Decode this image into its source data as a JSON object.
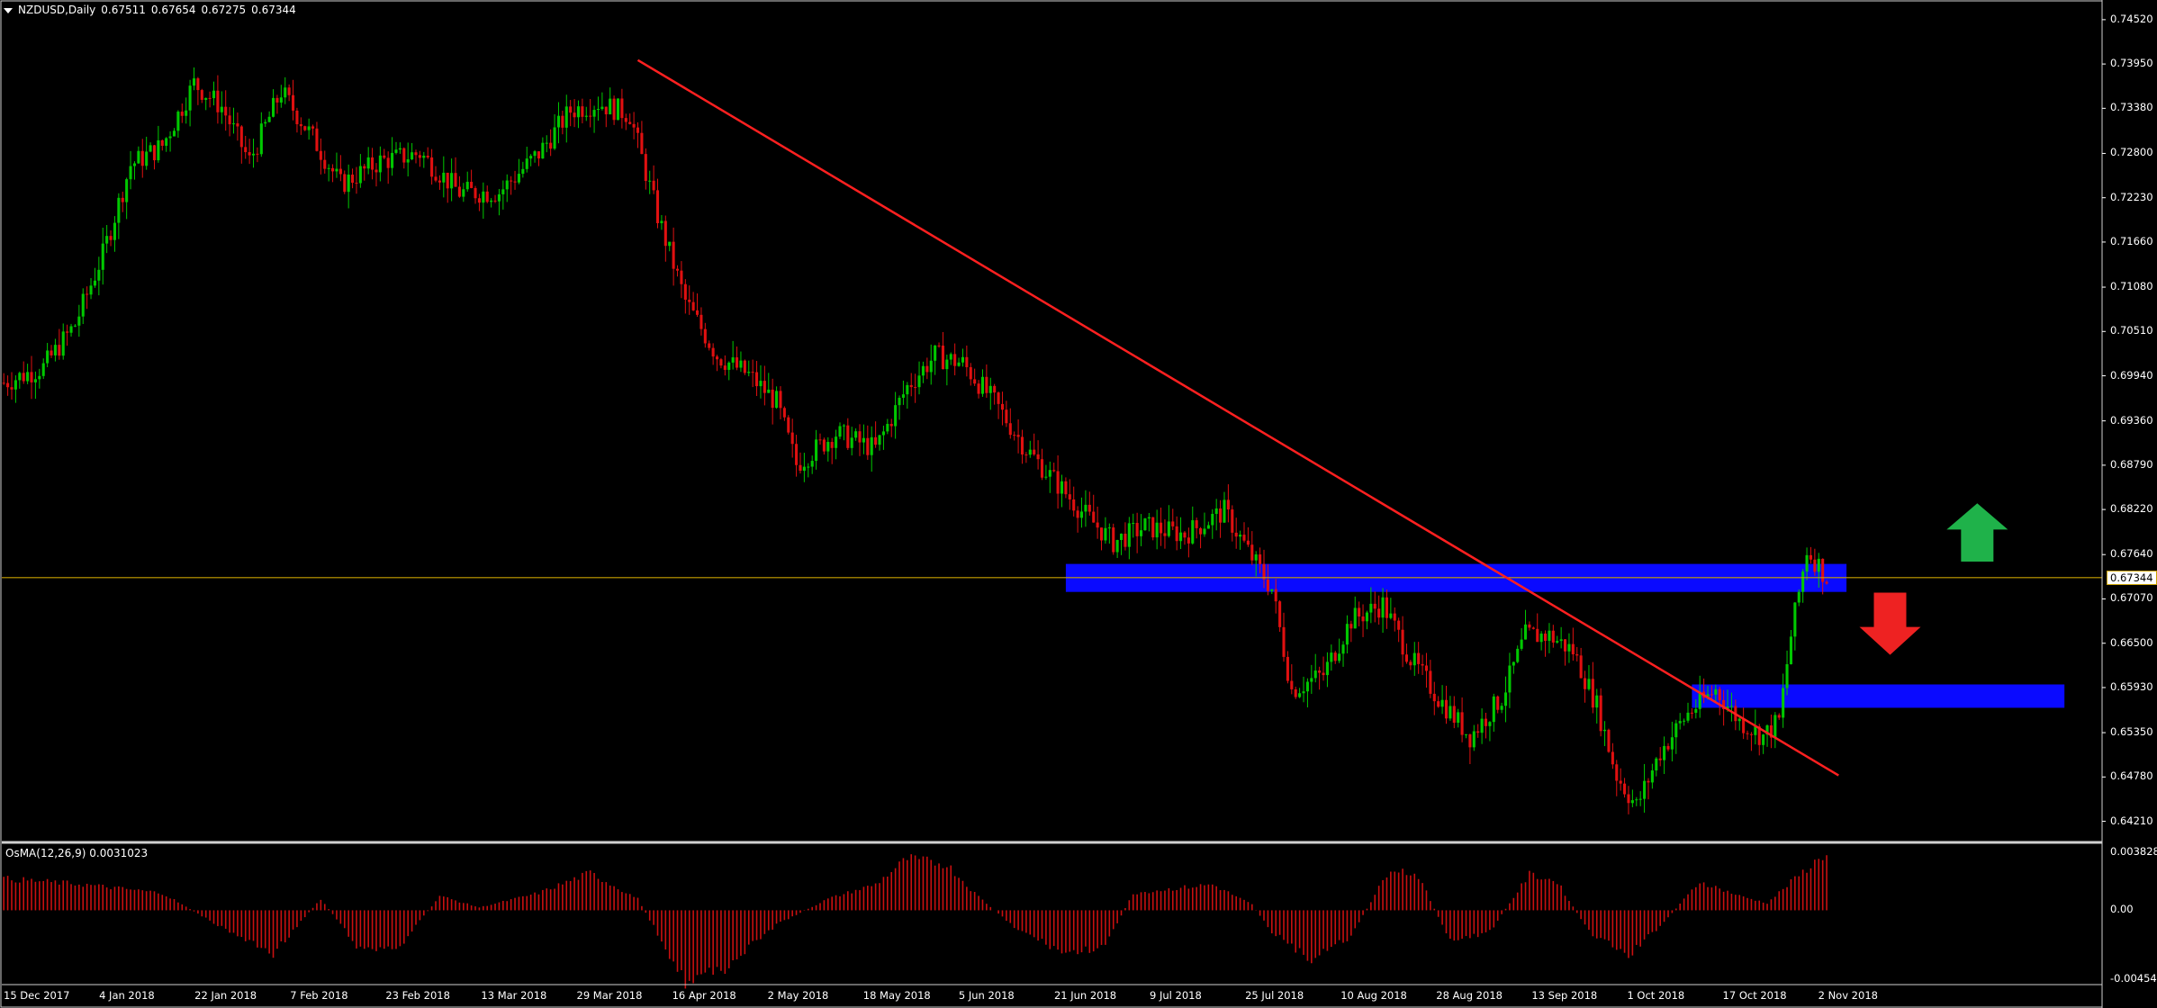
{
  "header": {
    "symbol": "NZDUSD,Daily",
    "open": "0.67511",
    "high": "0.67654",
    "low": "0.67275",
    "close": "0.67344"
  },
  "indicator": {
    "label": "OsMA(12,26,9) 0.0031023"
  },
  "colors": {
    "bull": "#00c800",
    "bear": "#e01010",
    "trendline": "#ff2020",
    "zone": "#0a0aff",
    "price_line": "#c8a000",
    "osma": "#c81010",
    "up_arrow": "#1fb24a",
    "down_arrow": "#ee2222",
    "grid_border": "#d0d0d0"
  },
  "current_price_label": "0.67344",
  "y_axis_labels": [
    "0.74520",
    "0.73950",
    "0.73380",
    "0.72800",
    "0.72230",
    "0.71660",
    "0.71080",
    "0.70510",
    "0.69940",
    "0.69360",
    "0.68790",
    "0.68220",
    "0.67640",
    "0.67070",
    "0.66500",
    "0.65930",
    "0.65350",
    "0.64780",
    "0.64210"
  ],
  "osma_axis_labels": [
    "0.003828",
    "0.00",
    "-0.004547"
  ],
  "x_axis_labels": [
    "15 Dec 2017",
    "4 Jan 2018",
    "22 Jan 2018",
    "7 Feb 2018",
    "23 Feb 2018",
    "13 Mar 2018",
    "29 Mar 2018",
    "16 Apr 2018",
    "2 May 2018",
    "18 May 2018",
    "5 Jun 2018",
    "21 Jun 2018",
    "9 Jul 2018",
    "25 Jul 2018",
    "10 Aug 2018",
    "28 Aug 2018",
    "13 Sep 2018",
    "1 Oct 2018",
    "17 Oct 2018",
    "2 Nov 2018"
  ],
  "chart_data": {
    "type": "candlestick",
    "symbol": "NZDUSD",
    "timeframe": "Daily",
    "ylim": [
      0.6395,
      0.7475
    ],
    "osma_ylim": [
      -0.004547,
      0.003828
    ],
    "current_price": 0.67344,
    "close_path": [
      [
        0,
        0.6985
      ],
      [
        10,
        0.7005
      ],
      [
        18,
        0.706
      ],
      [
        25,
        0.715
      ],
      [
        32,
        0.7265
      ],
      [
        40,
        0.729
      ],
      [
        48,
        0.737
      ],
      [
        55,
        0.734
      ],
      [
        62,
        0.727
      ],
      [
        70,
        0.736
      ],
      [
        78,
        0.73
      ],
      [
        85,
        0.724
      ],
      [
        95,
        0.727
      ],
      [
        105,
        0.728
      ],
      [
        115,
        0.723
      ],
      [
        125,
        0.723
      ],
      [
        135,
        0.728
      ],
      [
        143,
        0.7335
      ],
      [
        150,
        0.7345
      ],
      [
        158,
        0.733
      ],
      [
        165,
        0.72
      ],
      [
        172,
        0.709
      ],
      [
        180,
        0.702
      ],
      [
        188,
        0.6995
      ],
      [
        195,
        0.696
      ],
      [
        200,
        0.688
      ],
      [
        210,
        0.692
      ],
      [
        220,
        0.69
      ],
      [
        228,
        0.698
      ],
      [
        235,
        0.702
      ],
      [
        242,
        0.701
      ],
      [
        250,
        0.696
      ],
      [
        258,
        0.69
      ],
      [
        265,
        0.686
      ],
      [
        272,
        0.682
      ],
      [
        280,
        0.678
      ],
      [
        288,
        0.68
      ],
      [
        298,
        0.679
      ],
      [
        308,
        0.682
      ],
      [
        315,
        0.676
      ],
      [
        320,
        0.672
      ],
      [
        325,
        0.659
      ],
      [
        333,
        0.661
      ],
      [
        340,
        0.668
      ],
      [
        348,
        0.67
      ],
      [
        355,
        0.663
      ],
      [
        362,
        0.658
      ],
      [
        370,
        0.653
      ],
      [
        378,
        0.658
      ],
      [
        384,
        0.666
      ],
      [
        390,
        0.666
      ],
      [
        396,
        0.664
      ],
      [
        402,
        0.657
      ],
      [
        407,
        0.648
      ],
      [
        412,
        0.644
      ],
      [
        418,
        0.651
      ],
      [
        425,
        0.656
      ],
      [
        432,
        0.659
      ],
      [
        438,
        0.655
      ],
      [
        444,
        0.653
      ],
      [
        448,
        0.655
      ],
      [
        451,
        0.666
      ],
      [
        455,
        0.677
      ],
      [
        458,
        0.675
      ],
      [
        460,
        0.6734
      ]
    ],
    "osma_path": [
      [
        0,
        0.0022
      ],
      [
        20,
        0.0018
      ],
      [
        40,
        0.0012
      ],
      [
        55,
        -0.0012
      ],
      [
        68,
        -0.003
      ],
      [
        80,
        0.0008
      ],
      [
        90,
        -0.0028
      ],
      [
        100,
        -0.0025
      ],
      [
        110,
        0.001
      ],
      [
        120,
        0.0002
      ],
      [
        135,
        0.0012
      ],
      [
        148,
        0.0026
      ],
      [
        160,
        0.0008
      ],
      [
        172,
        -0.005
      ],
      [
        182,
        -0.004
      ],
      [
        195,
        -0.001
      ],
      [
        208,
        0.0008
      ],
      [
        220,
        0.0018
      ],
      [
        228,
        0.0036
      ],
      [
        238,
        0.0032
      ],
      [
        245,
        0.0012
      ],
      [
        255,
        -0.0012
      ],
      [
        268,
        -0.003
      ],
      [
        278,
        -0.0025
      ],
      [
        285,
        0.0012
      ],
      [
        295,
        0.0015
      ],
      [
        305,
        0.0018
      ],
      [
        315,
        0.0004
      ],
      [
        320,
        -0.0015
      ],
      [
        330,
        -0.0035
      ],
      [
        340,
        -0.0018
      ],
      [
        350,
        0.003
      ],
      [
        357,
        0.0024
      ],
      [
        365,
        -0.0022
      ],
      [
        375,
        -0.0015
      ],
      [
        385,
        0.0025
      ],
      [
        392,
        0.002
      ],
      [
        400,
        -0.0015
      ],
      [
        410,
        -0.0032
      ],
      [
        420,
        -0.0005
      ],
      [
        428,
        0.002
      ],
      [
        438,
        0.001
      ],
      [
        445,
        0.0005
      ],
      [
        452,
        0.0022
      ],
      [
        460,
        0.004
      ]
    ],
    "trendline": {
      "from": [
        160,
        0.74
      ],
      "to": [
        463,
        0.648
      ]
    },
    "zones": [
      {
        "from": 268,
        "to": 465,
        "low": 0.6716,
        "high": 0.6752
      },
      {
        "from": 426,
        "to": 520,
        "low": 0.6567,
        "high": 0.6597
      }
    ],
    "arrows": [
      {
        "direction": "up",
        "at": 498,
        "base": 0.6755,
        "tip": 0.683
      },
      {
        "direction": "down",
        "at": 476,
        "base": 0.6715,
        "tip": 0.6635
      }
    ]
  }
}
